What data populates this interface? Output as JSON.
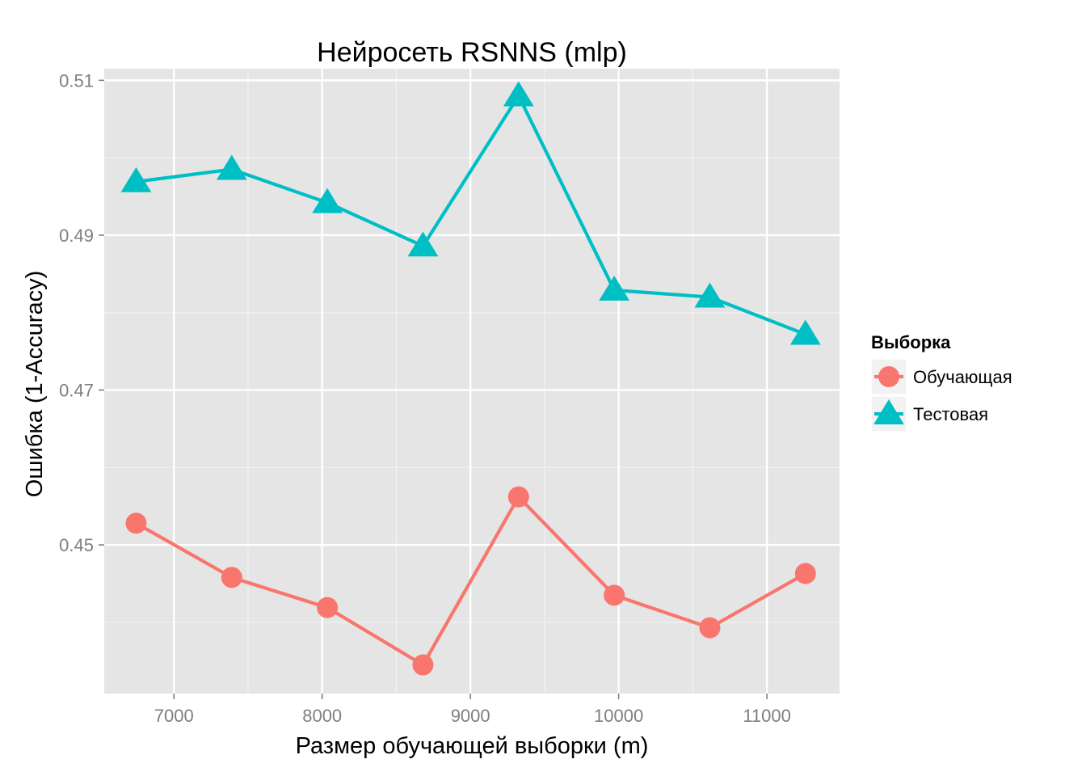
{
  "chart_data": {
    "type": "line",
    "title": "Нейросеть RSNNS (mlp)",
    "xlabel": "Размер обучающей выборки (m)",
    "ylabel": "Ошибка (1-Accuracy)",
    "xlim": [
      6530,
      11490
    ],
    "ylim": [
      0.4308,
      0.5115
    ],
    "x_ticks": [
      7000,
      8000,
      9000,
      10000,
      11000
    ],
    "x_tick_labels": [
      "7000",
      "8000",
      "9000",
      "10000",
      "11000"
    ],
    "y_ticks": [
      0.45,
      0.47,
      0.49,
      0.51
    ],
    "y_tick_labels": [
      "0.45",
      "0.47",
      "0.49",
      "0.51"
    ],
    "x": [
      6745,
      7390,
      8035,
      8680,
      9325,
      9970,
      10615,
      11260
    ],
    "series": [
      {
        "name": "Обучающая",
        "marker": "circle",
        "color": "#F8766D",
        "values": [
          0.4528,
          0.4458,
          0.4419,
          0.4345,
          0.4562,
          0.4435,
          0.4393,
          0.4463
        ]
      },
      {
        "name": "Тестовая",
        "marker": "triangle",
        "color": "#00BFC4",
        "values": [
          0.4969,
          0.4985,
          0.4942,
          0.4886,
          0.508,
          0.4829,
          0.482,
          0.4772
        ]
      }
    ],
    "legend": {
      "title": "Выборка",
      "position": "right"
    },
    "grid": true,
    "panel_background": "#E5E5E5",
    "grid_major_color": "#FFFFFF",
    "grid_minor_color": "#F2F2F2"
  }
}
